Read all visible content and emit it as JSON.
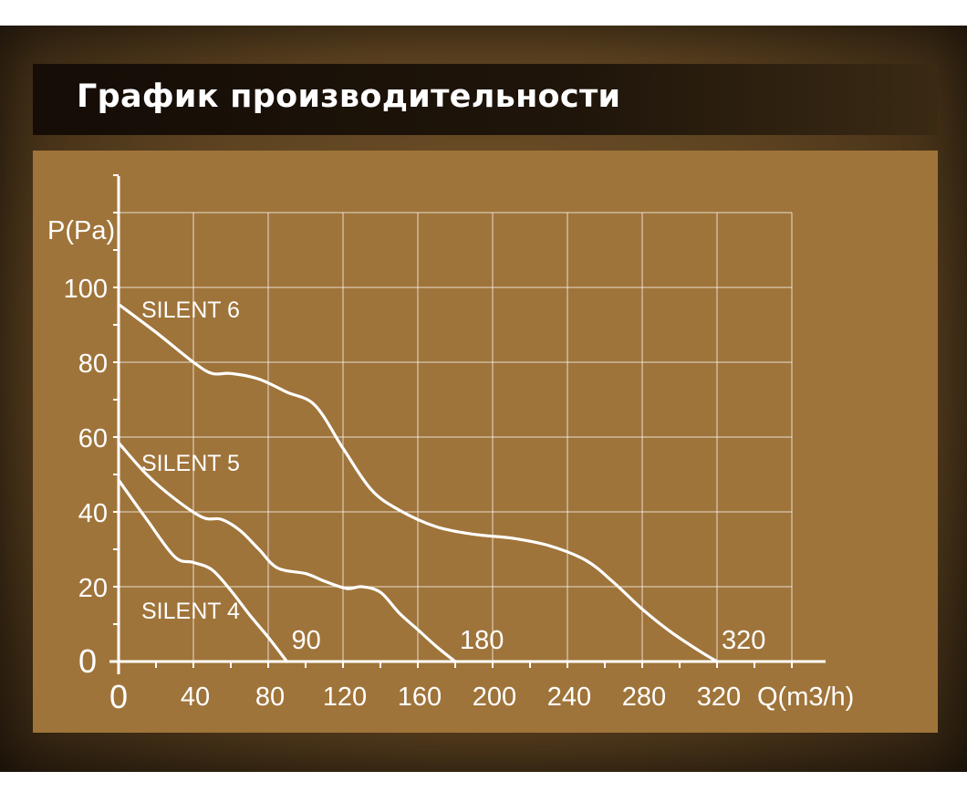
{
  "header": {
    "title": "График производительности"
  },
  "colors": {
    "panel": "#9f743a",
    "lines": "#ffffff",
    "title_bar": "#1a1108"
  },
  "chart_data": {
    "type": "line",
    "title": "График производительности",
    "xlabel": "Q(m3/h)",
    "ylabel": "P(Pa)",
    "xlim": [
      0,
      360
    ],
    "ylim": [
      0,
      120
    ],
    "x_ticks": [
      {
        "value": 0,
        "label": "0"
      },
      {
        "value": 40,
        "label": "40"
      },
      {
        "value": 80,
        "label": "80"
      },
      {
        "value": 120,
        "label": "120"
      },
      {
        "value": 160,
        "label": "160"
      },
      {
        "value": 200,
        "label": "200"
      },
      {
        "value": 240,
        "label": "240"
      },
      {
        "value": 280,
        "label": "280"
      },
      {
        "value": 320,
        "label": "320"
      }
    ],
    "y_ticks": [
      {
        "value": 0,
        "label": "0"
      },
      {
        "value": 20,
        "label": "20"
      },
      {
        "value": 40,
        "label": "40"
      },
      {
        "value": 60,
        "label": "60"
      },
      {
        "value": 80,
        "label": "80"
      },
      {
        "value": 100,
        "label": "100"
      }
    ],
    "grid": true,
    "series": [
      {
        "name": "SILENT 6",
        "end_label": "320",
        "points": [
          [
            0,
            95.5
          ],
          [
            20,
            88
          ],
          [
            40,
            80
          ],
          [
            50,
            77
          ],
          [
            60,
            77
          ],
          [
            75,
            75.5
          ],
          [
            90,
            72
          ],
          [
            105,
            68.5
          ],
          [
            120,
            57
          ],
          [
            135,
            46
          ],
          [
            150,
            40.5
          ],
          [
            170,
            36
          ],
          [
            190,
            34
          ],
          [
            210,
            33
          ],
          [
            230,
            31
          ],
          [
            250,
            27
          ],
          [
            265,
            21
          ],
          [
            280,
            14
          ],
          [
            295,
            8
          ],
          [
            310,
            3
          ],
          [
            320,
            0
          ]
        ]
      },
      {
        "name": "SILENT 5",
        "end_label": "180",
        "points": [
          [
            0,
            58.5
          ],
          [
            15,
            50
          ],
          [
            30,
            43.5
          ],
          [
            45,
            38.5
          ],
          [
            55,
            38
          ],
          [
            65,
            35
          ],
          [
            75,
            30
          ],
          [
            85,
            25
          ],
          [
            100,
            23.5
          ],
          [
            110,
            21.5
          ],
          [
            122,
            19.5
          ],
          [
            130,
            20
          ],
          [
            140,
            18.5
          ],
          [
            150,
            13
          ],
          [
            160,
            8.5
          ],
          [
            170,
            4
          ],
          [
            180,
            0
          ]
        ]
      },
      {
        "name": "SILENT 4",
        "end_label": "90",
        "points": [
          [
            0,
            48.5
          ],
          [
            15,
            38
          ],
          [
            30,
            28
          ],
          [
            40,
            26.5
          ],
          [
            50,
            24.5
          ],
          [
            60,
            19
          ],
          [
            70,
            12.5
          ],
          [
            80,
            6.5
          ],
          [
            90,
            0
          ]
        ]
      }
    ]
  }
}
